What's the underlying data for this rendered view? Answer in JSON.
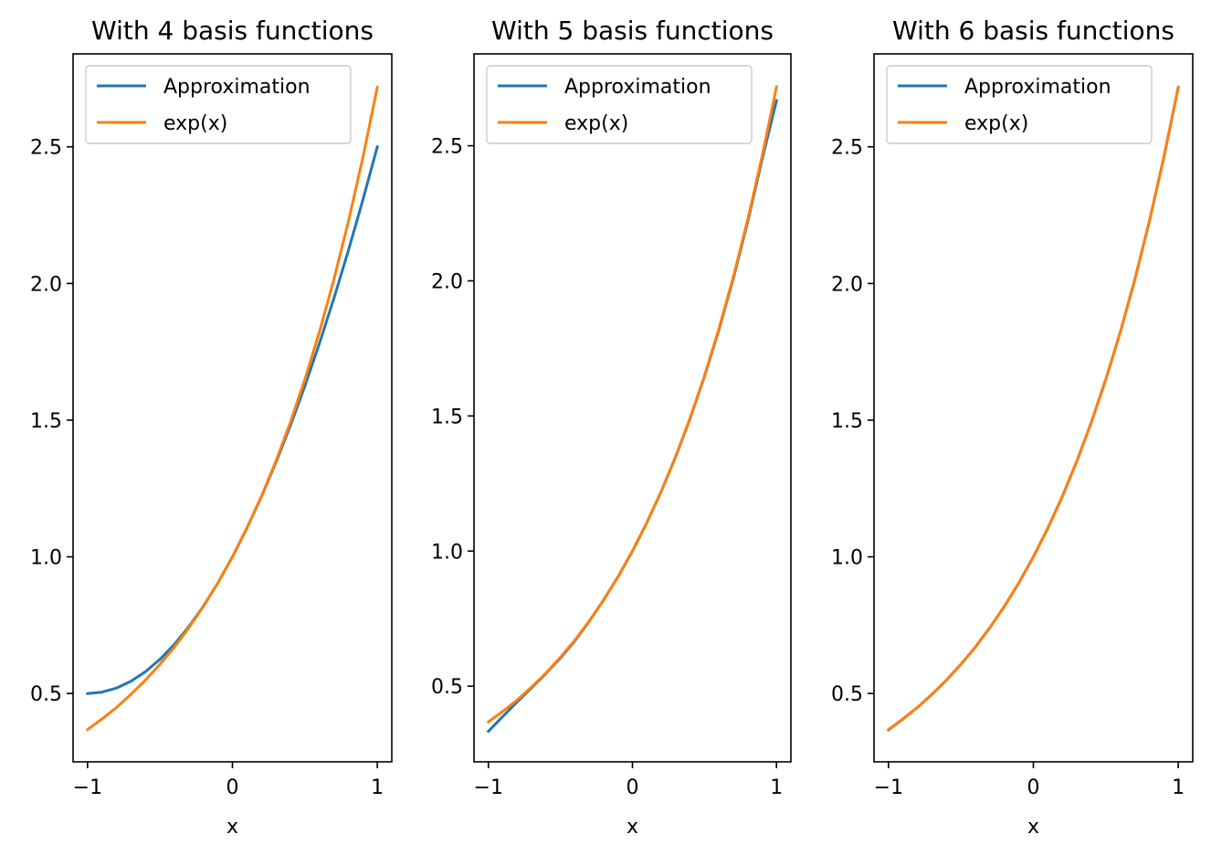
{
  "colors": {
    "approximation": "#1f77b4",
    "exp": "#ff7f0e",
    "axes": "#000000",
    "legend_border": "#cccccc"
  },
  "chart_data": [
    {
      "type": "line",
      "title": "With 4 basis functions",
      "xlabel": "x",
      "ylabel": "",
      "xlim": [
        -1.1,
        1.1
      ],
      "ylim": [
        0.25,
        2.84
      ],
      "xticks": [
        -1,
        0,
        1
      ],
      "xtick_labels": [
        "−1",
        "0",
        "1"
      ],
      "yticks": [
        0.5,
        1.0,
        1.5,
        2.0,
        2.5
      ],
      "ytick_labels": [
        "0.5",
        "1.0",
        "1.5",
        "2.0",
        "2.5"
      ],
      "grid": false,
      "legend": "upper-left",
      "series": [
        {
          "name": "Approximation",
          "color": "#1f77b4",
          "x": [
            -1.0,
            -0.9,
            -0.8,
            -0.7,
            -0.6,
            -0.5,
            -0.4,
            -0.3,
            -0.2,
            -0.1,
            0.0,
            0.1,
            0.2,
            0.3,
            0.4,
            0.5,
            0.6,
            0.7,
            0.8,
            0.9,
            1.0
          ],
          "y": [
            0.5,
            0.505,
            0.52,
            0.545,
            0.58,
            0.625,
            0.68,
            0.745,
            0.82,
            0.905,
            1.0,
            1.105,
            1.22,
            1.345,
            1.48,
            1.625,
            1.78,
            1.945,
            2.12,
            2.305,
            2.5
          ]
        },
        {
          "name": "exp(x)",
          "color": "#ff7f0e",
          "x": [
            -1.0,
            -0.9,
            -0.8,
            -0.7,
            -0.6,
            -0.5,
            -0.4,
            -0.3,
            -0.2,
            -0.1,
            0.0,
            0.1,
            0.2,
            0.3,
            0.4,
            0.5,
            0.6,
            0.7,
            0.8,
            0.9,
            1.0
          ],
          "y": [
            0.368,
            0.407,
            0.449,
            0.497,
            0.549,
            0.607,
            0.67,
            0.741,
            0.819,
            0.905,
            1.0,
            1.105,
            1.221,
            1.35,
            1.492,
            1.649,
            1.822,
            2.014,
            2.226,
            2.46,
            2.718
          ]
        }
      ]
    },
    {
      "type": "line",
      "title": "With 5 basis functions",
      "xlabel": "x",
      "ylabel": "",
      "xlim": [
        -1.1,
        1.1
      ],
      "ylim": [
        0.22,
        2.84
      ],
      "xticks": [
        -1,
        0,
        1
      ],
      "xtick_labels": [
        "−1",
        "0",
        "1"
      ],
      "yticks": [
        0.5,
        1.0,
        1.5,
        2.0,
        2.5
      ],
      "ytick_labels": [
        "0.5",
        "1.0",
        "1.5",
        "2.0",
        "2.5"
      ],
      "grid": false,
      "legend": "upper-left",
      "series": [
        {
          "name": "Approximation",
          "color": "#1f77b4",
          "x": [
            -1.0,
            -0.9,
            -0.8,
            -0.7,
            -0.6,
            -0.5,
            -0.4,
            -0.3,
            -0.2,
            -0.1,
            0.0,
            0.1,
            0.2,
            0.3,
            0.4,
            0.5,
            0.6,
            0.7,
            0.8,
            0.9,
            1.0
          ],
          "y": [
            0.333,
            0.388,
            0.442,
            0.494,
            0.547,
            0.604,
            0.667,
            0.74,
            0.819,
            0.905,
            1.0,
            1.105,
            1.221,
            1.349,
            1.49,
            1.646,
            1.818,
            2.008,
            2.218,
            2.449,
            2.667
          ]
        },
        {
          "name": "exp(x)",
          "color": "#ff7f0e",
          "x": [
            -1.0,
            -0.9,
            -0.8,
            -0.7,
            -0.6,
            -0.5,
            -0.4,
            -0.3,
            -0.2,
            -0.1,
            0.0,
            0.1,
            0.2,
            0.3,
            0.4,
            0.5,
            0.6,
            0.7,
            0.8,
            0.9,
            1.0
          ],
          "y": [
            0.368,
            0.407,
            0.449,
            0.497,
            0.549,
            0.607,
            0.67,
            0.741,
            0.819,
            0.905,
            1.0,
            1.105,
            1.221,
            1.35,
            1.492,
            1.649,
            1.822,
            2.014,
            2.226,
            2.46,
            2.718
          ]
        }
      ]
    },
    {
      "type": "line",
      "title": "With 6 basis functions",
      "xlabel": "x",
      "ylabel": "",
      "xlim": [
        -1.1,
        1.1
      ],
      "ylim": [
        0.25,
        2.84
      ],
      "xticks": [
        -1,
        0,
        1
      ],
      "xtick_labels": [
        "−1",
        "0",
        "1"
      ],
      "yticks": [
        0.5,
        1.0,
        1.5,
        2.0,
        2.5
      ],
      "ytick_labels": [
        "0.5",
        "1.0",
        "1.5",
        "2.0",
        "2.5"
      ],
      "grid": false,
      "legend": "upper-left",
      "series": [
        {
          "name": "Approximation",
          "color": "#1f77b4",
          "x": [
            -1.0,
            -0.9,
            -0.8,
            -0.7,
            -0.6,
            -0.5,
            -0.4,
            -0.3,
            -0.2,
            -0.1,
            0.0,
            0.1,
            0.2,
            0.3,
            0.4,
            0.5,
            0.6,
            0.7,
            0.8,
            0.9,
            1.0
          ],
          "y": [
            0.367,
            0.407,
            0.449,
            0.497,
            0.549,
            0.607,
            0.67,
            0.741,
            0.819,
            0.905,
            1.0,
            1.105,
            1.221,
            1.35,
            1.492,
            1.649,
            1.822,
            2.014,
            2.226,
            2.46,
            2.717
          ]
        },
        {
          "name": "exp(x)",
          "color": "#ff7f0e",
          "x": [
            -1.0,
            -0.9,
            -0.8,
            -0.7,
            -0.6,
            -0.5,
            -0.4,
            -0.3,
            -0.2,
            -0.1,
            0.0,
            0.1,
            0.2,
            0.3,
            0.4,
            0.5,
            0.6,
            0.7,
            0.8,
            0.9,
            1.0
          ],
          "y": [
            0.368,
            0.407,
            0.449,
            0.497,
            0.549,
            0.607,
            0.67,
            0.741,
            0.819,
            0.905,
            1.0,
            1.105,
            1.221,
            1.35,
            1.492,
            1.649,
            1.822,
            2.014,
            2.226,
            2.46,
            2.718
          ]
        }
      ]
    }
  ]
}
